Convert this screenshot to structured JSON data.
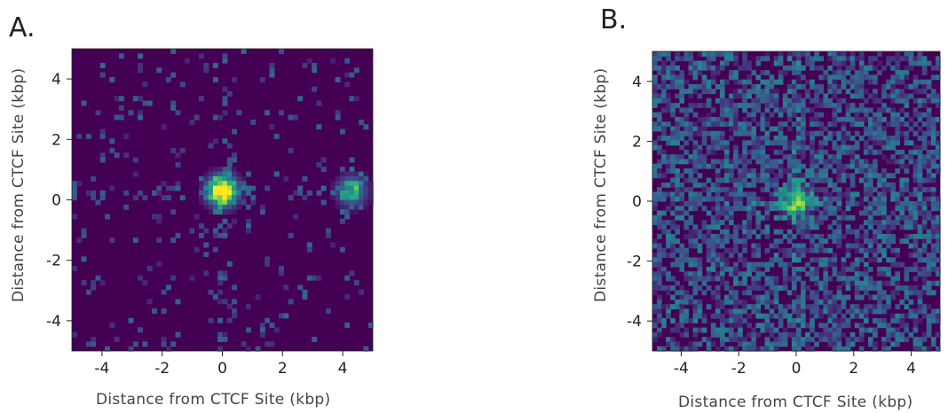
{
  "panels": [
    {
      "letter": "A.",
      "xlabel": "Distance from CTCF Site (kbp)",
      "ylabel": "Distance from CTCF Site (kbp)"
    },
    {
      "letter": "B.",
      "xlabel": "Distance from CTCF Site (kbp)",
      "ylabel": "Distance from CTCF Site (kbp)"
    }
  ],
  "colors": {
    "background_low": "#440154",
    "mid": "#31688e",
    "teal": "#21918c",
    "green": "#35b779",
    "high": "#fde725"
  },
  "chart_data": [
    {
      "type": "heatmap",
      "panel": "A.",
      "title": "",
      "xlabel": "Distance from CTCF Site (kbp)",
      "ylabel": "Distance from CTCF Site (kbp)",
      "xlim": [
        -5,
        5
      ],
      "ylim": [
        -5,
        5
      ],
      "xticks": [
        -4,
        -2,
        0,
        2,
        4
      ],
      "yticks": [
        -4,
        -2,
        0,
        2,
        4
      ],
      "grid": false,
      "colormap": "viridis",
      "features": {
        "hotspots": [
          {
            "x": 0.0,
            "y": 0.3,
            "intensity": 1.0
          },
          {
            "x": 4.3,
            "y": 0.3,
            "intensity": 0.5
          }
        ],
        "horizontal_stripe_y": 0.3,
        "vertical_stripe_x": 0.0,
        "background_density": 0.12
      }
    },
    {
      "type": "heatmap",
      "panel": "B.",
      "title": "",
      "xlabel": "Distance from CTCF Site (kbp)",
      "ylabel": "Distance from CTCF Site (kbp)",
      "xlim": [
        -5,
        5
      ],
      "ylim": [
        -5,
        5
      ],
      "xticks": [
        -4,
        -2,
        0,
        2,
        4
      ],
      "yticks": [
        -4,
        -2,
        0,
        2,
        4
      ],
      "grid": false,
      "colormap": "viridis",
      "features": {
        "hotspots": [
          {
            "x": 0.0,
            "y": 0.0,
            "intensity": 0.55
          }
        ],
        "horizontal_stripe_y": 0.0,
        "vertical_stripe_x": 0.0,
        "background_density": 0.6
      }
    }
  ]
}
